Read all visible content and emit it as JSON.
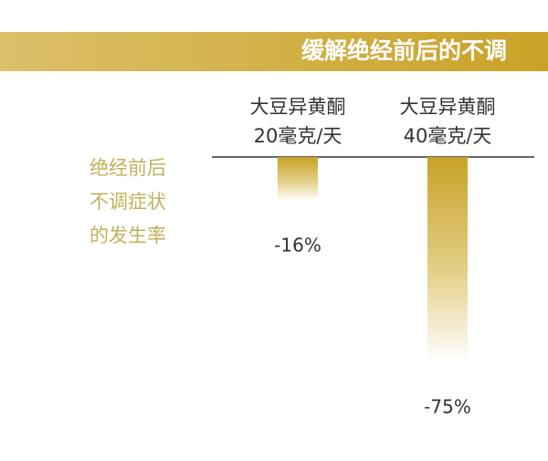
{
  "chart_data": {
    "type": "bar",
    "title": "缓解绝经前后的不调",
    "ylabel": [
      "绝经前后",
      "不调症状",
      "的发生率"
    ],
    "categories": [
      [
        "大豆异黄酮",
        "20毫克/天"
      ],
      [
        "大豆异黄酮",
        "40毫克/天"
      ]
    ],
    "values": [
      -16,
      -75
    ],
    "value_labels": [
      "-16%",
      "-75%"
    ],
    "color": "#c9a227"
  }
}
